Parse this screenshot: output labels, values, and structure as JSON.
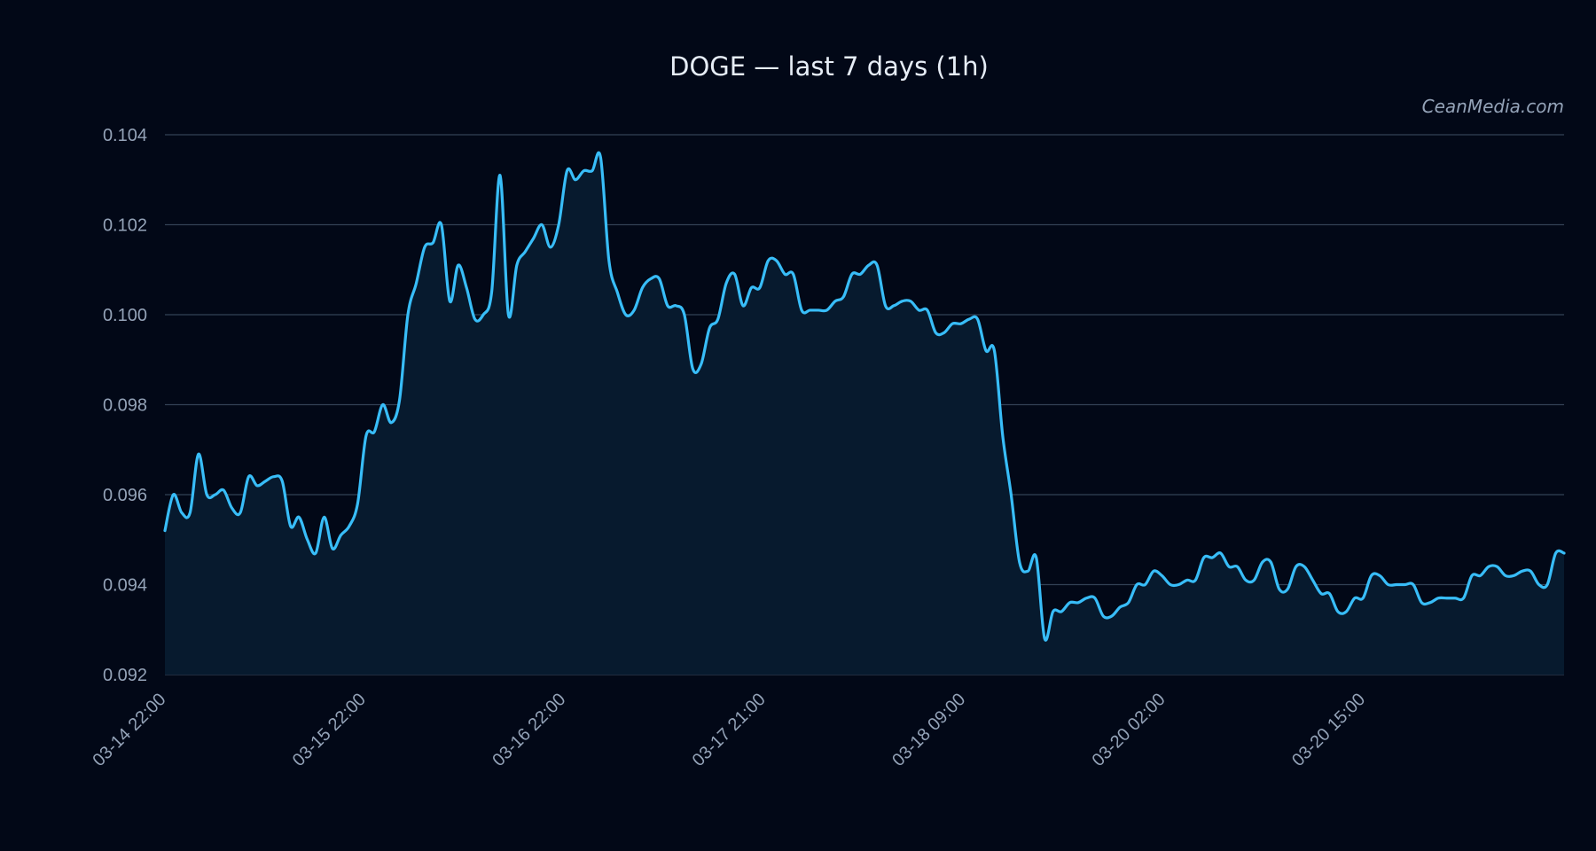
{
  "chart_data": {
    "type": "area",
    "title": "DOGE — last 7 days (1h)",
    "watermark": "CeanMedia.com",
    "xlabel": "",
    "ylabel": "",
    "ylim": [
      0.092,
      0.104
    ],
    "yticks": [
      0.092,
      0.094,
      0.096,
      0.098,
      0.1,
      0.102,
      0.104
    ],
    "ytick_labels": [
      "0.092",
      "0.094",
      "0.096",
      "0.098",
      "0.100",
      "0.102",
      "0.104"
    ],
    "xlim": [
      0,
      210
    ],
    "xticks": [
      0,
      30,
      60,
      90,
      120,
      150,
      180
    ],
    "xtick_labels": [
      "03-14 22:00",
      "03-15 22:00",
      "03-16 22:00",
      "03-17 21:00",
      "03-18 09:00",
      "03-20 02:00",
      "03-20 15:00"
    ],
    "grid": true,
    "line_color": "#38bdf8",
    "fill_color": "#071a2e",
    "background_color": "#020817",
    "series": [
      {
        "values": [
          0.0952,
          0.096,
          0.0956,
          0.0956,
          0.0969,
          0.096,
          0.096,
          0.0961,
          0.0957,
          0.0956,
          0.0964,
          0.0962,
          0.0963,
          0.0964,
          0.0963,
          0.0953,
          0.0955,
          0.095,
          0.0947,
          0.0955,
          0.0948,
          0.0951,
          0.0953,
          0.0958,
          0.0973,
          0.0974,
          0.098,
          0.0976,
          0.0981,
          0.1,
          0.1007,
          0.1015,
          0.1016,
          0.102,
          0.1003,
          0.1011,
          0.1006,
          0.0999,
          0.1,
          0.1005,
          0.1031,
          0.1,
          0.1011,
          0.1014,
          0.1017,
          0.102,
          0.1015,
          0.102,
          0.1032,
          0.103,
          0.1032,
          0.1032,
          0.1035,
          0.1012,
          0.1005,
          0.1,
          0.1001,
          0.1006,
          0.1008,
          0.1008,
          0.1002,
          0.1002,
          0.1,
          0.0988,
          0.0989,
          0.0997,
          0.0999,
          0.1007,
          0.1009,
          0.1002,
          0.1006,
          0.1006,
          0.1012,
          0.1012,
          0.1009,
          0.1009,
          0.1001,
          0.1001,
          0.1001,
          0.1001,
          0.1003,
          0.1004,
          0.1009,
          0.1009,
          0.1011,
          0.1011,
          0.1002,
          0.1002,
          0.1003,
          0.1003,
          0.1001,
          0.1001,
          0.0996,
          0.0996,
          0.0998,
          0.0998,
          0.0999,
          0.0999,
          0.0992,
          0.0992,
          0.0973,
          0.096,
          0.0945,
          0.0943,
          0.0946,
          0.0928,
          0.0934,
          0.0934,
          0.0936,
          0.0936,
          0.0937,
          0.0937,
          0.0933,
          0.0933,
          0.0935,
          0.0936,
          0.094,
          0.094,
          0.0943,
          0.0942,
          0.094,
          0.094,
          0.0941,
          0.0941,
          0.0946,
          0.0946,
          0.0947,
          0.0944,
          0.0944,
          0.0941,
          0.0941,
          0.0945,
          0.0945,
          0.0939,
          0.0939,
          0.0944,
          0.0944,
          0.0941,
          0.0938,
          0.0938,
          0.0934,
          0.0934,
          0.0937,
          0.0937,
          0.0942,
          0.0942,
          0.094,
          0.094,
          0.094,
          0.094,
          0.0936,
          0.0936,
          0.0937,
          0.0937,
          0.0937,
          0.0937,
          0.0942,
          0.0942,
          0.0944,
          0.0944,
          0.0942,
          0.0942,
          0.0943,
          0.0943,
          0.094,
          0.094,
          0.0947,
          0.0947
        ]
      }
    ]
  }
}
